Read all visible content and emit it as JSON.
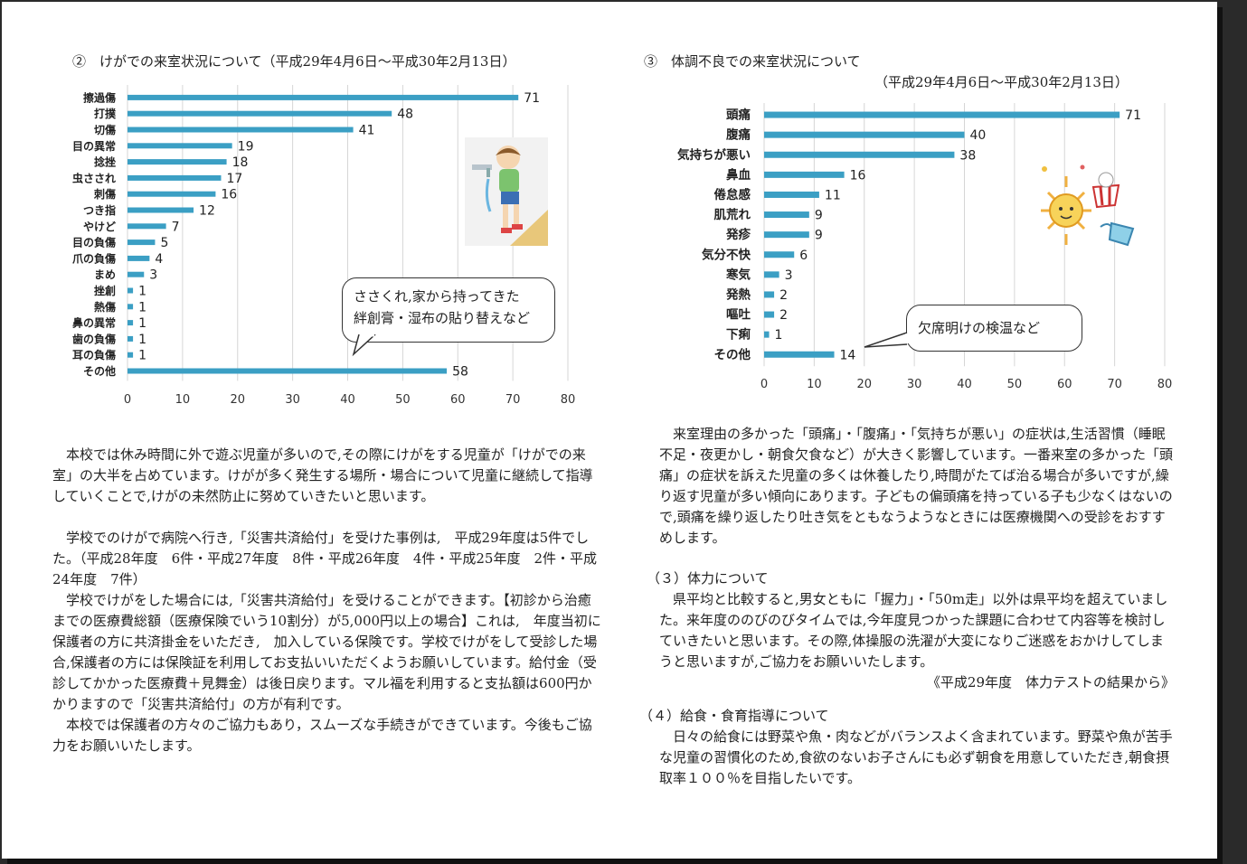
{
  "chart_data": [
    {
      "type": "bar",
      "orientation": "horizontal",
      "title": "②　けがでの来室状況について（平成29年4月6日～平成30年2月13日）",
      "categories": [
        "擦過傷",
        "打撲",
        "切傷",
        "目の異常",
        "捻挫",
        "虫さされ",
        "刺傷",
        "つき指",
        "やけど",
        "目の負傷",
        "爪の負傷",
        "まめ",
        "挫創",
        "熱傷",
        "鼻の異常",
        "歯の負傷",
        "耳の負傷",
        "その他"
      ],
      "values": [
        71,
        48,
        41,
        19,
        18,
        17,
        16,
        12,
        7,
        5,
        4,
        3,
        1,
        1,
        1,
        1,
        1,
        58
      ],
      "xlim": [
        0,
        80
      ],
      "xticks": [
        0,
        10,
        20,
        30,
        40,
        50,
        60,
        70,
        80
      ],
      "grid": true,
      "color": "#3b9fc4"
    },
    {
      "type": "bar",
      "orientation": "horizontal",
      "title": "③　体調不良での来室状況について",
      "subtitle": "（平成29年4月6日～平成30年2月13日）",
      "categories": [
        "頭痛",
        "腹痛",
        "気持ちが悪い",
        "鼻血",
        "倦怠感",
        "肌荒れ",
        "発疹",
        "気分不快",
        "寒気",
        "発熱",
        "嘔吐",
        "下痢",
        "その他"
      ],
      "values": [
        71,
        40,
        38,
        16,
        11,
        9,
        9,
        6,
        3,
        2,
        2,
        1,
        14
      ],
      "xlim": [
        0,
        80
      ],
      "xticks": [
        0,
        10,
        20,
        30,
        40,
        50,
        60,
        70,
        80
      ],
      "grid": true,
      "color": "#3b9fc4"
    }
  ],
  "left": {
    "callout": [
      "ささくれ,家から持ってきた",
      "絆創膏・湿布の貼り替えなど"
    ],
    "para1": "本校では休み時間に外で遊ぶ児童が多いので,その際にけがをする児童が「けがでの来室」の大半を占めています。けがが多く発生する場所・場合について児童に継続して指導していくことで,けがの未然防止に努めていきたいと思います。",
    "para2": "学校でのけがで病院へ行き,「災害共済給付」を受けた事例は,　平成29年度は5件でした。（平成28年度　6件・平成27年度　8件・平成26年度　4件・平成25年度　2件・平成24年度　7件）",
    "para3": "学校でけがをした場合には,「災害共済給付」を受けることができます。【初診から治癒までの医療費総額（医療保険でいう10割分）が5,000円以上の場合】これは,　年度当初に保護者の方に共済掛金をいただき,　加入している保険です。学校でけがをして受診した場合,保護者の方には保険証を利用してお支払いいただくようお願いしています。給付金（受診してかかった医療費＋見舞金）は後日戻ります。マル福を利用すると支払額は600円かかりますので「災害共済給付」の方が有利です。",
    "para4": "本校では保護者の方々のご協力もあり，スムーズな手続きができています。今後もご協力をお願いいたします。"
  },
  "right": {
    "callout": "欠席明けの検温など",
    "para1": "来室理由の多かった「頭痛」・「腹痛」・「気持ちが悪い」の症状は,生活習慣（睡眠不足・夜更かし・朝食欠食など）が大きく影響しています。一番来室の多かった「頭痛」の症状を訴えた児童の多くは休養したり,時間がたてば治る場合が多いですが,繰り返す児童が多い傾向にあります。子どもの偏頭痛を持っている子も少なくはないので,頭痛を繰り返したり吐き気をともなうようなときには医療機関への受診をおすすめします。",
    "section3_title": "（３）体力について",
    "section3_body": "県平均と比較すると,男女ともに「握力」・「50m走」以外は県平均を超えていました。来年度ののびのびタイムでは,今年度見つかった課題に合わせて内容等を検討していきたいと思います。その際,体操服の洗濯が大変になりご迷惑をおかけしてしまうと思いますが,ご協力をお願いいたします。",
    "section3_source": "《平成29年度　体力テストの結果から》",
    "section4_title": "（４）給食・食育指導について",
    "section4_body": "日々の給食には野菜や魚・肉などがバランスよく含まれています。野菜や魚が苦手な児童の習慣化のため,食欲のないお子さんにも必ず朝食を用意していただき,朝食摂取率１００％を目指したいです。"
  }
}
